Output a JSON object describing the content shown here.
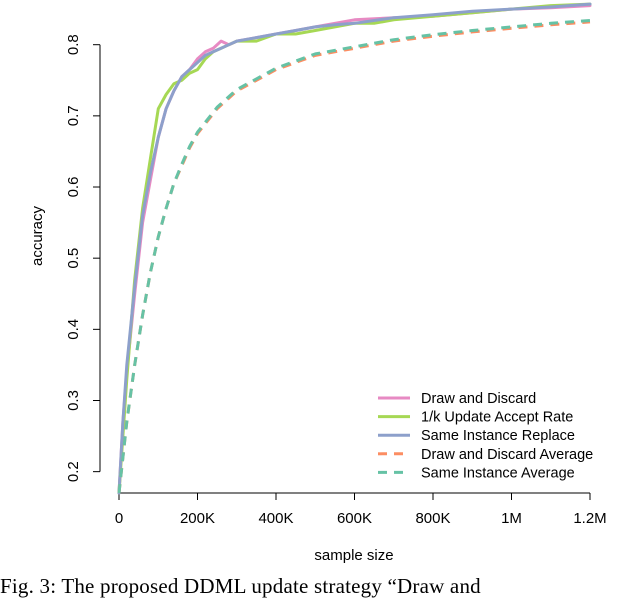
{
  "chart_data": {
    "type": "line",
    "xlabel": "sample size",
    "ylabel": "accuracy",
    "xlim": [
      0,
      1200000
    ],
    "ylim": [
      0.17,
      0.86
    ],
    "x_ticks": [
      0,
      200000,
      400000,
      600000,
      800000,
      1000000,
      1200000
    ],
    "x_tick_labels": [
      "0",
      "200K",
      "400K",
      "600K",
      "800K",
      "1M",
      "1.2M"
    ],
    "y_ticks": [
      0.2,
      0.3,
      0.4,
      0.5,
      0.6,
      0.7,
      0.8
    ],
    "y_tick_labels": [
      "0.2",
      "0.3",
      "0.4",
      "0.5",
      "0.6",
      "0.7",
      "0.8"
    ],
    "grid": false,
    "legend_position": "bottom-right",
    "series": [
      {
        "name": "Draw and Discard",
        "color": "#e78ac3",
        "dash": "solid",
        "x": [
          0,
          10000,
          20000,
          40000,
          60000,
          80000,
          100000,
          120000,
          140000,
          160000,
          180000,
          200000,
          220000,
          240000,
          260000,
          280000,
          300000,
          350000,
          400000,
          450000,
          500000,
          550000,
          600000,
          700000,
          800000,
          900000,
          1000000,
          1100000,
          1200000
        ],
        "y": [
          0.17,
          0.27,
          0.34,
          0.45,
          0.55,
          0.61,
          0.67,
          0.71,
          0.735,
          0.755,
          0.765,
          0.78,
          0.79,
          0.795,
          0.805,
          0.8,
          0.805,
          0.81,
          0.815,
          0.82,
          0.825,
          0.83,
          0.835,
          0.838,
          0.84,
          0.845,
          0.85,
          0.852,
          0.855
        ]
      },
      {
        "name": "1/k Update Accept Rate",
        "color": "#a6d854",
        "dash": "solid",
        "x": [
          0,
          10000,
          20000,
          40000,
          60000,
          80000,
          100000,
          120000,
          140000,
          160000,
          180000,
          200000,
          220000,
          240000,
          260000,
          280000,
          300000,
          350000,
          400000,
          450000,
          500000,
          550000,
          600000,
          650000,
          700000,
          800000,
          900000,
          1000000,
          1100000,
          1200000
        ],
        "y": [
          0.17,
          0.25,
          0.33,
          0.47,
          0.57,
          0.64,
          0.71,
          0.73,
          0.745,
          0.75,
          0.76,
          0.765,
          0.78,
          0.79,
          0.795,
          0.8,
          0.805,
          0.805,
          0.815,
          0.815,
          0.82,
          0.825,
          0.83,
          0.83,
          0.835,
          0.84,
          0.845,
          0.85,
          0.855,
          0.857
        ]
      },
      {
        "name": "Same Instance Replace",
        "color": "#8da0cb",
        "dash": "solid",
        "x": [
          0,
          10000,
          20000,
          40000,
          60000,
          80000,
          100000,
          120000,
          140000,
          160000,
          180000,
          200000,
          220000,
          240000,
          260000,
          280000,
          300000,
          350000,
          400000,
          450000,
          500000,
          550000,
          600000,
          700000,
          800000,
          900000,
          1000000,
          1100000,
          1200000
        ],
        "y": [
          0.17,
          0.27,
          0.35,
          0.46,
          0.56,
          0.62,
          0.67,
          0.71,
          0.735,
          0.755,
          0.765,
          0.775,
          0.785,
          0.79,
          0.795,
          0.8,
          0.805,
          0.81,
          0.815,
          0.82,
          0.825,
          0.828,
          0.83,
          0.838,
          0.842,
          0.847,
          0.85,
          0.853,
          0.857
        ]
      },
      {
        "name": "Draw and Discard Average",
        "color": "#fc8d62",
        "dash": "dashed",
        "x": [
          0,
          10000,
          20000,
          40000,
          60000,
          80000,
          100000,
          120000,
          140000,
          160000,
          180000,
          200000,
          250000,
          300000,
          350000,
          400000,
          450000,
          500000,
          550000,
          600000,
          700000,
          800000,
          900000,
          1000000,
          1100000,
          1200000
        ],
        "y": [
          0.17,
          0.22,
          0.27,
          0.35,
          0.42,
          0.48,
          0.53,
          0.57,
          0.605,
          0.63,
          0.655,
          0.675,
          0.71,
          0.735,
          0.75,
          0.765,
          0.775,
          0.785,
          0.79,
          0.795,
          0.805,
          0.812,
          0.818,
          0.823,
          0.828,
          0.832
        ]
      },
      {
        "name": "Same Instance Average",
        "color": "#66c2a5",
        "dash": "dashed",
        "x": [
          0,
          10000,
          20000,
          40000,
          60000,
          80000,
          100000,
          120000,
          140000,
          160000,
          180000,
          200000,
          250000,
          300000,
          350000,
          400000,
          450000,
          500000,
          550000,
          600000,
          700000,
          800000,
          900000,
          1000000,
          1100000,
          1200000
        ],
        "y": [
          0.17,
          0.22,
          0.27,
          0.35,
          0.42,
          0.48,
          0.53,
          0.57,
          0.605,
          0.632,
          0.657,
          0.677,
          0.712,
          0.737,
          0.752,
          0.767,
          0.777,
          0.787,
          0.792,
          0.797,
          0.807,
          0.814,
          0.82,
          0.825,
          0.83,
          0.834
        ]
      }
    ]
  },
  "caption": "Fig.   3:   The   proposed   DDML   update   strategy   “Draw   and"
}
